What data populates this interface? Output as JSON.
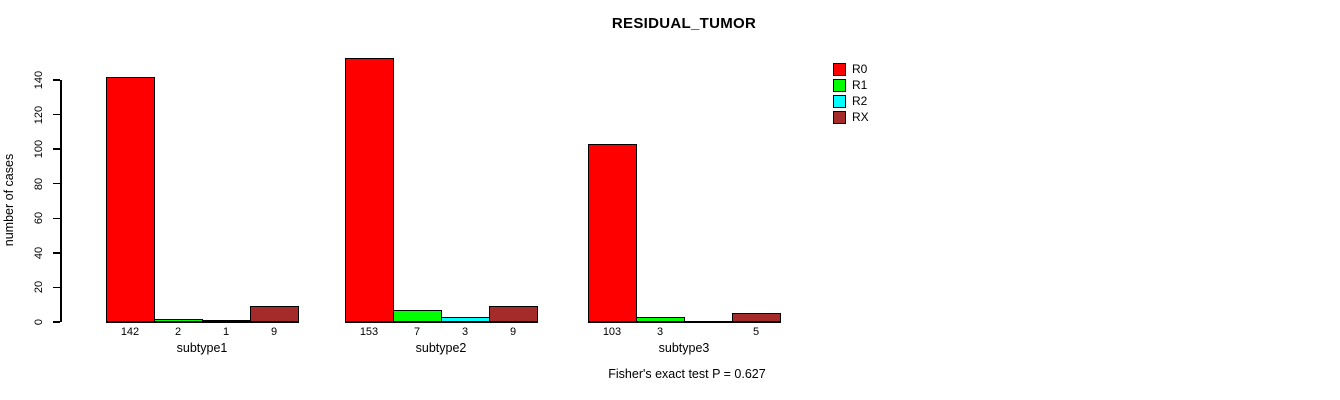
{
  "chart_data": {
    "type": "bar",
    "title": "RESIDUAL_TUMOR",
    "ylabel": "number of cases",
    "xlabel": "",
    "categories": [
      "subtype1",
      "subtype2",
      "subtype3"
    ],
    "series": [
      {
        "name": "R0",
        "color": "#FF0000",
        "values": [
          142,
          153,
          103
        ]
      },
      {
        "name": "R1",
        "color": "#00FF00",
        "values": [
          2,
          7,
          3
        ]
      },
      {
        "name": "R2",
        "color": "#00FFFF",
        "values": [
          1,
          3,
          0
        ]
      },
      {
        "name": "RX",
        "color": "#A52A2A",
        "values": [
          9,
          9,
          5
        ]
      }
    ],
    "bar_labels": [
      [
        "142",
        "2",
        "1",
        "9"
      ],
      [
        "153",
        "7",
        "3",
        "9"
      ],
      [
        "103",
        "3",
        "",
        "5"
      ]
    ],
    "yticks": [
      0,
      20,
      40,
      60,
      80,
      100,
      120,
      140
    ],
    "ylim": [
      0,
      140
    ],
    "grid": false,
    "bar_edge_color": "#000000",
    "legend_position": "right",
    "annotation": "Fisher's exact test P = 0.627"
  }
}
